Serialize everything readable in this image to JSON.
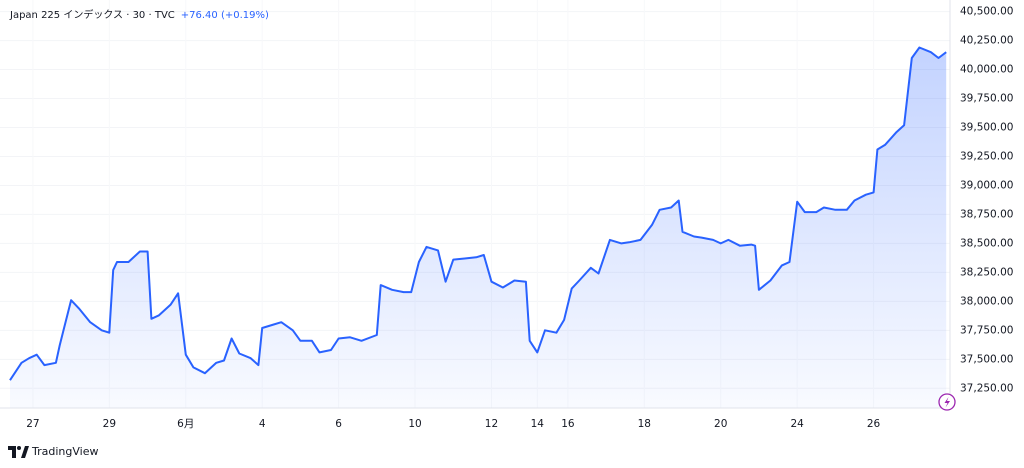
{
  "chart_data": {
    "type": "area",
    "title": "Japan 225 インデックス · 30 · TVC",
    "change": "+76.40 (+0.19%)",
    "color": "#2962ff",
    "grid": true,
    "x": [
      0,
      0.3,
      0.5,
      0.7,
      0.9,
      1.2,
      1.3,
      1.4,
      1.6,
      1.8,
      2.1,
      2.4,
      2.6,
      2.7,
      2.8,
      3.1,
      3.4,
      3.6,
      3.7,
      3.9,
      4.2,
      4.4,
      4.6,
      4.8,
      5.1,
      5.4,
      5.6,
      5.8,
      6.0,
      6.3,
      6.5,
      6.6,
      6.9,
      7.1,
      7.4,
      7.6,
      7.9,
      8.1,
      8.4,
      8.6,
      8.9,
      9.2,
      9.6,
      9.7,
      10.0,
      10.3,
      10.5,
      10.7,
      10.9,
      11.2,
      11.4,
      11.6,
      11.9,
      12.2,
      12.4,
      12.6,
      12.9,
      13.2,
      13.5,
      13.6,
      13.8,
      14.0,
      14.3,
      14.5,
      14.7,
      14.9,
      15.2,
      15.4,
      15.7,
      16.0,
      16.2,
      16.5,
      16.8,
      17.0,
      17.3,
      17.5,
      17.6,
      17.9,
      18.1,
      18.4,
      18.6,
      18.8,
      19.1,
      19.4,
      19.5,
      19.6,
      19.9,
      20.2,
      20.4,
      20.6,
      20.8,
      21.1,
      21.3,
      21.6,
      21.9,
      22.1,
      22.4,
      22.6,
      22.7,
      22.9,
      23.2,
      23.4,
      23.6,
      23.8,
      24.1,
      24.3,
      24.5
    ],
    "values": [
      37320,
      37470,
      37510,
      37540,
      37450,
      37470,
      37620,
      37750,
      38010,
      37940,
      37820,
      37750,
      37730,
      38270,
      38340,
      38340,
      38430,
      38430,
      37850,
      37880,
      37970,
      38070,
      37540,
      37430,
      37380,
      37470,
      37490,
      37680,
      37550,
      37510,
      37450,
      37770,
      37800,
      37820,
      37750,
      37660,
      37660,
      37560,
      37580,
      37680,
      37690,
      37660,
      37710,
      38140,
      38100,
      38080,
      38080,
      38340,
      38470,
      38440,
      38170,
      38360,
      38370,
      38380,
      38400,
      38170,
      38120,
      38180,
      38170,
      37660,
      37560,
      37750,
      37730,
      37840,
      38110,
      38180,
      38290,
      38240,
      38530,
      38500,
      38510,
      38530,
      38660,
      38790,
      38810,
      38870,
      38600,
      38560,
      38550,
      38530,
      38500,
      38530,
      38480,
      38490,
      38480,
      38100,
      38180,
      38310,
      38340,
      38860,
      38770,
      38770,
      38810,
      38790,
      38790,
      38870,
      38920,
      38940,
      39310,
      39350,
      39460,
      39520,
      40100,
      40190,
      40150,
      40100,
      40150
    ],
    "xlim": [
      0,
      24.6
    ],
    "xticks": [
      {
        "value": 0.6,
        "label": "27"
      },
      {
        "value": 2.6,
        "label": "29"
      },
      {
        "value": 4.6,
        "label": "6月"
      },
      {
        "value": 6.6,
        "label": "4"
      },
      {
        "value": 8.6,
        "label": "6"
      },
      {
        "value": 10.6,
        "label": "10"
      },
      {
        "value": 12.6,
        "label": "12"
      },
      {
        "value": 13.8,
        "label": "14"
      },
      {
        "value": 14.6,
        "label": "16"
      },
      {
        "value": 16.6,
        "label": "18"
      },
      {
        "value": 18.6,
        "label": "20"
      },
      {
        "value": 20.6,
        "label": "24"
      },
      {
        "value": 22.6,
        "label": "26"
      }
    ],
    "ylim": [
      37080,
      40600
    ],
    "yticks": [
      {
        "value": 37250,
        "label": "37,250.00"
      },
      {
        "value": 37500,
        "label": "37,500.00"
      },
      {
        "value": 37750,
        "label": "37,750.00"
      },
      {
        "value": 38000,
        "label": "38,000.00"
      },
      {
        "value": 38250,
        "label": "38,250.00"
      },
      {
        "value": 38500,
        "label": "38,500.00"
      },
      {
        "value": 38750,
        "label": "38,750.00"
      },
      {
        "value": 39000,
        "label": "39,000.00"
      },
      {
        "value": 39250,
        "label": "39,250.00"
      },
      {
        "value": 39500,
        "label": "39,500.00"
      },
      {
        "value": 39750,
        "label": "39,750.00"
      },
      {
        "value": 40000,
        "label": "40,000.00"
      },
      {
        "value": 40250,
        "label": "40,250.00"
      },
      {
        "value": 40500,
        "label": "40,500.00"
      }
    ]
  },
  "footer": {
    "brand": "TradingView"
  }
}
